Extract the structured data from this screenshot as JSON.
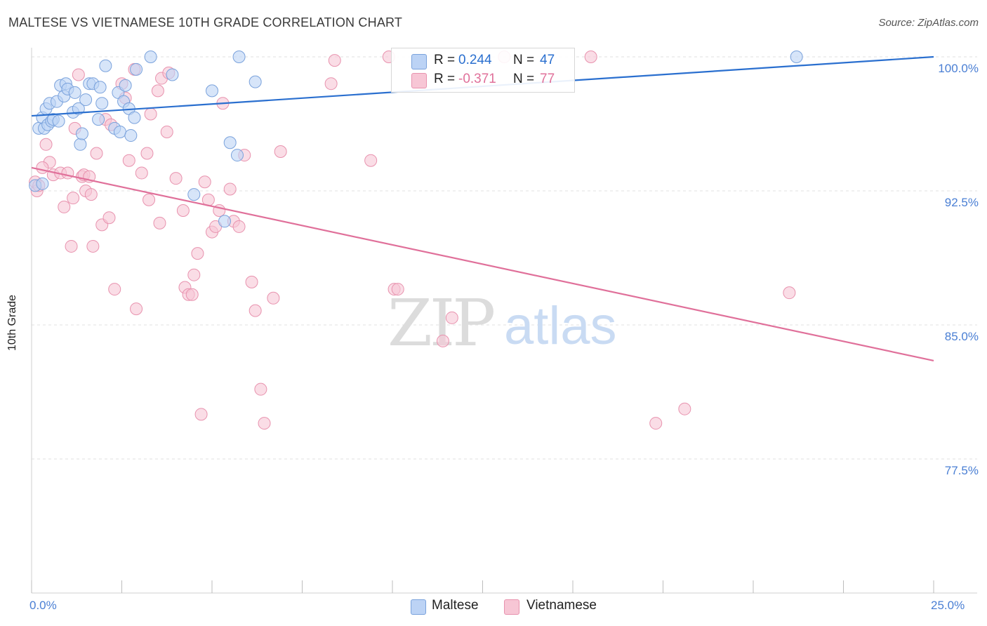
{
  "title": "MALTESE VS VIETNAMESE 10TH GRADE CORRELATION CHART",
  "source": "Source: ZipAtlas.com",
  "watermark": {
    "zip": "ZIP",
    "atlas": "atlas"
  },
  "colors": {
    "blue_fill": "#bcd3f5",
    "blue_stroke": "#7aa2dc",
    "blue_line": "#2a6fcf",
    "blue_text": "#2a6fcf",
    "pink_fill": "#f7c6d5",
    "pink_stroke": "#e892ae",
    "pink_line": "#e0709a",
    "pink_text": "#e0709a",
    "tick_text": "#4a7fd4"
  },
  "legend": {
    "rows": [
      {
        "r_label": "R =",
        "r_value": "0.244",
        "n_label": "N =",
        "n_value": "47",
        "series": "blue"
      },
      {
        "r_label": "R =",
        "r_value": "-0.371",
        "n_label": "N =",
        "n_value": "77",
        "series": "pink"
      }
    ]
  },
  "bottom_legend": {
    "maltese": "Maltese",
    "vietnamese": "Vietnamese"
  },
  "chart_data": {
    "type": "scatter",
    "xlabel": "",
    "ylabel": "10th Grade",
    "xlim": [
      0,
      25
    ],
    "ylim": [
      70.0,
      101.5
    ],
    "x_tick_labels": {
      "left": "0.0%",
      "right": "25.0%"
    },
    "y_ticks": [
      {
        "value": 100.0,
        "label": "100.0%"
      },
      {
        "value": 92.5,
        "label": "92.5%"
      },
      {
        "value": 85.0,
        "label": "85.0%"
      },
      {
        "value": 77.5,
        "label": "77.5%"
      }
    ],
    "grid": "horizontal dashed",
    "series": [
      {
        "name": "Maltese",
        "color": "blue",
        "trend": {
          "x": [
            0,
            25
          ],
          "y": [
            96.7,
            100.0
          ]
        },
        "points": [
          [
            0.2,
            96.0
          ],
          [
            0.3,
            96.6
          ],
          [
            0.35,
            96.0
          ],
          [
            0.4,
            97.1
          ],
          [
            0.45,
            96.2
          ],
          [
            0.5,
            97.4
          ],
          [
            0.55,
            96.4
          ],
          [
            0.6,
            96.5
          ],
          [
            0.7,
            97.5
          ],
          [
            0.75,
            96.4
          ],
          [
            0.8,
            98.4
          ],
          [
            0.9,
            97.8
          ],
          [
            0.95,
            98.5
          ],
          [
            1.0,
            98.2
          ],
          [
            1.2,
            98.0
          ],
          [
            1.15,
            96.9
          ],
          [
            1.3,
            97.1
          ],
          [
            1.35,
            95.1
          ],
          [
            1.4,
            95.7
          ],
          [
            1.5,
            97.6
          ],
          [
            1.6,
            98.5
          ],
          [
            1.7,
            98.5
          ],
          [
            1.85,
            96.5
          ],
          [
            1.9,
            98.3
          ],
          [
            1.95,
            97.4
          ],
          [
            2.05,
            99.5
          ],
          [
            2.3,
            96.0
          ],
          [
            2.4,
            98.0
          ],
          [
            2.45,
            95.8
          ],
          [
            2.55,
            97.5
          ],
          [
            2.6,
            98.4
          ],
          [
            2.7,
            97.1
          ],
          [
            2.75,
            95.6
          ],
          [
            2.85,
            96.6
          ],
          [
            3.3,
            100.0
          ],
          [
            3.9,
            99.0
          ],
          [
            4.5,
            92.3
          ],
          [
            5.0,
            98.1
          ],
          [
            5.35,
            90.8
          ],
          [
            5.5,
            95.2
          ],
          [
            5.7,
            94.5
          ],
          [
            5.75,
            100.0
          ],
          [
            6.2,
            98.6
          ],
          [
            21.2,
            100.0
          ],
          [
            0.1,
            92.8
          ],
          [
            2.9,
            99.3
          ],
          [
            0.3,
            92.9
          ]
        ]
      },
      {
        "name": "Vietnamese",
        "color": "pink",
        "trend": {
          "x": [
            0,
            25
          ],
          "y": [
            93.8,
            83.0
          ]
        },
        "points": [
          [
            0.1,
            93.0
          ],
          [
            0.15,
            92.5
          ],
          [
            0.2,
            92.8
          ],
          [
            0.4,
            95.1
          ],
          [
            0.5,
            94.1
          ],
          [
            0.6,
            93.4
          ],
          [
            0.8,
            93.5
          ],
          [
            0.9,
            91.6
          ],
          [
            1.0,
            93.5
          ],
          [
            1.1,
            89.4
          ],
          [
            1.15,
            92.1
          ],
          [
            1.2,
            96.0
          ],
          [
            1.4,
            93.3
          ],
          [
            1.45,
            93.4
          ],
          [
            1.5,
            92.5
          ],
          [
            1.6,
            93.3
          ],
          [
            1.65,
            92.3
          ],
          [
            1.7,
            89.4
          ],
          [
            1.8,
            94.6
          ],
          [
            1.95,
            90.6
          ],
          [
            2.05,
            96.5
          ],
          [
            2.15,
            91.0
          ],
          [
            2.2,
            96.2
          ],
          [
            2.3,
            87.0
          ],
          [
            2.5,
            98.5
          ],
          [
            2.6,
            97.7
          ],
          [
            2.7,
            94.2
          ],
          [
            2.85,
            99.3
          ],
          [
            2.9,
            85.9
          ],
          [
            3.05,
            93.5
          ],
          [
            3.2,
            94.6
          ],
          [
            3.25,
            92.0
          ],
          [
            3.3,
            96.8
          ],
          [
            3.5,
            98.1
          ],
          [
            3.55,
            90.7
          ],
          [
            3.6,
            98.8
          ],
          [
            3.75,
            95.8
          ],
          [
            3.8,
            99.1
          ],
          [
            4.0,
            93.2
          ],
          [
            4.2,
            91.4
          ],
          [
            4.25,
            87.1
          ],
          [
            4.35,
            86.7
          ],
          [
            4.45,
            86.7
          ],
          [
            4.5,
            87.8
          ],
          [
            4.6,
            89.0
          ],
          [
            4.7,
            80.0
          ],
          [
            4.8,
            93.0
          ],
          [
            4.9,
            92.0
          ],
          [
            5.0,
            90.2
          ],
          [
            5.1,
            90.5
          ],
          [
            5.2,
            91.4
          ],
          [
            5.3,
            97.4
          ],
          [
            5.5,
            92.6
          ],
          [
            5.6,
            90.8
          ],
          [
            5.75,
            90.5
          ],
          [
            5.9,
            94.5
          ],
          [
            6.1,
            87.4
          ],
          [
            6.2,
            85.8
          ],
          [
            6.35,
            81.4
          ],
          [
            6.45,
            79.5
          ],
          [
            6.7,
            86.5
          ],
          [
            6.9,
            94.7
          ],
          [
            8.3,
            98.5
          ],
          [
            8.4,
            99.8
          ],
          [
            9.4,
            94.2
          ],
          [
            9.9,
            100.0
          ],
          [
            10.05,
            87.0
          ],
          [
            10.15,
            87.0
          ],
          [
            11.4,
            84.1
          ],
          [
            11.65,
            85.4
          ],
          [
            13.1,
            100.0
          ],
          [
            15.5,
            100.0
          ],
          [
            17.3,
            79.5
          ],
          [
            18.1,
            80.3
          ],
          [
            21.0,
            86.8
          ],
          [
            0.3,
            93.8
          ],
          [
            1.3,
            99.0
          ]
        ]
      }
    ]
  }
}
